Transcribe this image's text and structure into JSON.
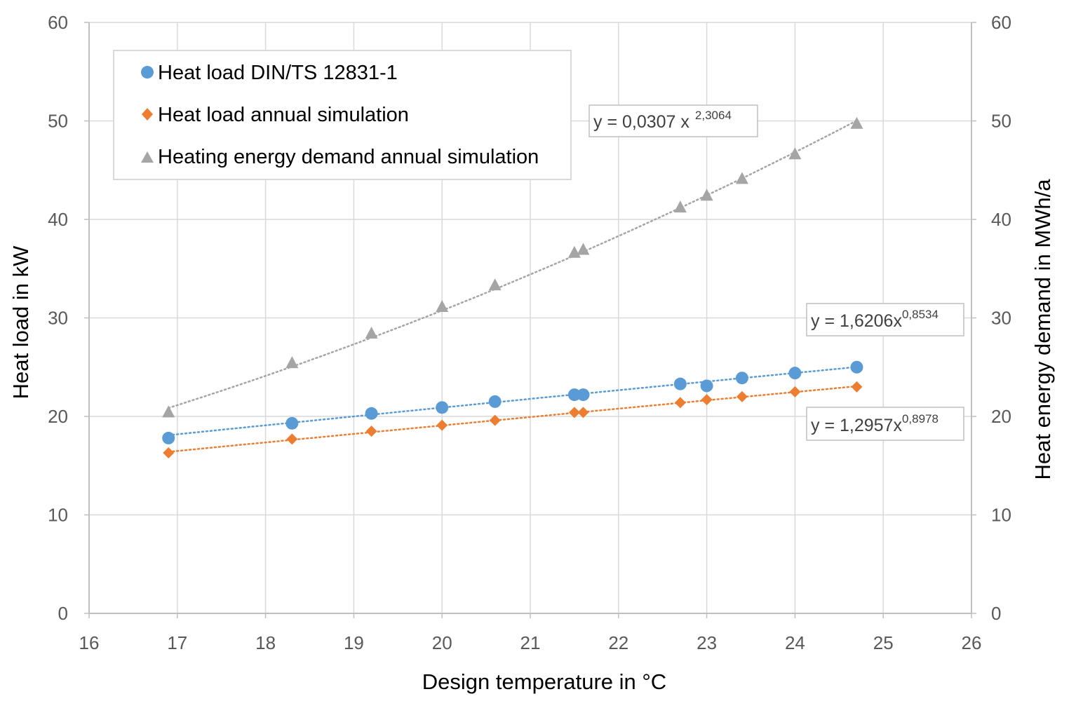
{
  "chart_data": {
    "type": "scatter",
    "xlabel": "Design temperature in °C",
    "ylabel": "Heat load in kW",
    "y2label": "Heat energy demand in MWh/a",
    "xlim": [
      16,
      26
    ],
    "ylim": [
      0,
      60
    ],
    "y2lim": [
      0,
      60
    ],
    "xticks": [
      "16",
      "17",
      "18",
      "19",
      "20",
      "21",
      "22",
      "23",
      "24",
      "25",
      "26"
    ],
    "yticks": [
      "0",
      "10",
      "20",
      "30",
      "40",
      "50",
      "60"
    ],
    "y2ticks": [
      "0",
      "10",
      "20",
      "30",
      "40",
      "50",
      "60"
    ],
    "grid": true,
    "legend_position": "top-left",
    "series": [
      {
        "name": "Heat load DIN/TS 12831-1",
        "marker": "circle",
        "color": "#5B9BD5",
        "axis": "left",
        "x": [
          16.9,
          18.3,
          19.2,
          20.0,
          20.6,
          21.5,
          21.6,
          22.7,
          23.0,
          23.4,
          24.0,
          24.7
        ],
        "y": [
          17.8,
          19.3,
          20.3,
          20.9,
          21.5,
          22.2,
          22.2,
          23.3,
          23.1,
          23.9,
          24.4,
          25.0
        ],
        "trendline": {
          "a": 1.6206,
          "b": 0.8534,
          "label_prefix": "y = 1,6206x",
          "label_exp": "0,8534"
        }
      },
      {
        "name": "Heat load annual simulation",
        "marker": "diamond",
        "color": "#ED7D31",
        "axis": "left",
        "x": [
          16.9,
          18.3,
          19.2,
          20.0,
          20.6,
          21.5,
          21.6,
          22.7,
          23.0,
          23.4,
          24.0,
          24.7
        ],
        "y": [
          16.3,
          17.7,
          18.5,
          19.1,
          19.6,
          20.4,
          20.4,
          21.4,
          21.7,
          22.0,
          22.5,
          23.0
        ],
        "trendline": {
          "a": 1.2957,
          "b": 0.8978,
          "label_prefix": "y = 1,2957x",
          "label_exp": "0,8978"
        }
      },
      {
        "name": "Heating energy demand annual simulation",
        "marker": "triangle",
        "color": "#A5A5A5",
        "axis": "right",
        "x": [
          16.9,
          18.3,
          19.2,
          20.0,
          20.6,
          21.5,
          21.6,
          22.7,
          23.0,
          23.4,
          24.0,
          24.7
        ],
        "y": [
          20.4,
          25.4,
          28.4,
          31.1,
          33.3,
          36.6,
          36.9,
          41.2,
          42.4,
          44.1,
          46.6,
          49.7
        ],
        "trendline": {
          "a": 0.0307,
          "b": 2.3064,
          "label_prefix": "y = 0,0307 x",
          "label_exp": "2,3064"
        }
      }
    ]
  }
}
